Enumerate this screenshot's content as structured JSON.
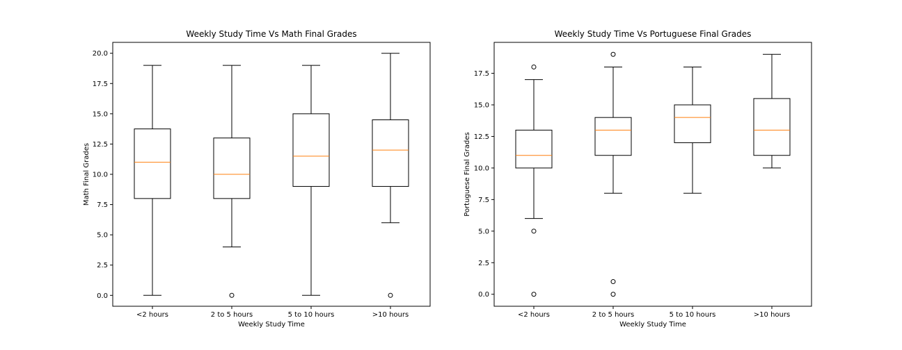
{
  "chart_data": [
    {
      "type": "box",
      "title": "Weekly Study Time Vs Math Final Grades",
      "xlabel": "Weekly Study Time",
      "ylabel": "Math Final Grades",
      "categories": [
        "<2 hours",
        "2 to 5 hours",
        "5 to 10 hours",
        ">10 hours"
      ],
      "ylim": [
        -0.9,
        20.9
      ],
      "yticks": [
        0.0,
        2.5,
        5.0,
        7.5,
        10.0,
        12.5,
        15.0,
        17.5,
        20.0
      ],
      "ytick_labels": [
        "0.0",
        "2.5",
        "5.0",
        "7.5",
        "10.0",
        "12.5",
        "15.0",
        "17.5",
        "20.0"
      ],
      "boxes": [
        {
          "whisker_low": 0,
          "q1": 8,
          "median": 11,
          "q3": 13.75,
          "whisker_high": 19,
          "outliers": []
        },
        {
          "whisker_low": 4,
          "q1": 8,
          "median": 10,
          "q3": 13,
          "whisker_high": 19,
          "outliers": [
            0
          ]
        },
        {
          "whisker_low": 0,
          "q1": 9,
          "median": 11.5,
          "q3": 15,
          "whisker_high": 19,
          "outliers": []
        },
        {
          "whisker_low": 6,
          "q1": 9,
          "median": 12,
          "q3": 14.5,
          "whisker_high": 20,
          "outliers": [
            0
          ]
        }
      ],
      "grid": false,
      "median_color": "#ff7f0e",
      "box_color": "#000000"
    },
    {
      "type": "box",
      "title": "Weekly Study Time Vs Portuguese Final Grades",
      "xlabel": "Weekly Study Time",
      "ylabel": "Portuguese Final Grades",
      "categories": [
        "<2 hours",
        "2 to 5 hours",
        "5 to 10 hours",
        ">10 hours"
      ],
      "ylim": [
        -0.95,
        19.95
      ],
      "yticks": [
        0.0,
        2.5,
        5.0,
        7.5,
        10.0,
        12.5,
        15.0,
        17.5
      ],
      "ytick_labels": [
        "0.0",
        "2.5",
        "5.0",
        "7.5",
        "10.0",
        "12.5",
        "15.0",
        "17.5"
      ],
      "boxes": [
        {
          "whisker_low": 6,
          "q1": 10,
          "median": 11,
          "q3": 13,
          "whisker_high": 17,
          "outliers": [
            18,
            5,
            0
          ]
        },
        {
          "whisker_low": 8,
          "q1": 11,
          "median": 13,
          "q3": 14,
          "whisker_high": 18,
          "outliers": [
            19,
            1,
            0
          ]
        },
        {
          "whisker_low": 8,
          "q1": 12,
          "median": 14,
          "q3": 15,
          "whisker_high": 18,
          "outliers": []
        },
        {
          "whisker_low": 10,
          "q1": 11,
          "median": 13,
          "q3": 15.5,
          "whisker_high": 19,
          "outliers": []
        }
      ],
      "grid": false,
      "median_color": "#ff7f0e",
      "box_color": "#000000"
    }
  ]
}
